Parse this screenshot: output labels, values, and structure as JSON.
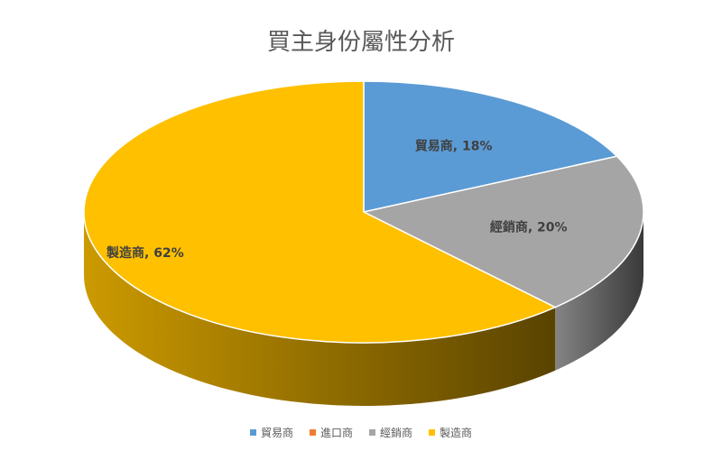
{
  "chart_data": {
    "type": "pie",
    "title": "買主身份屬性分析",
    "categories": [
      "貿易商",
      "進口商",
      "經銷商",
      "製造商"
    ],
    "values": [
      18,
      0,
      20,
      62
    ],
    "unit": "%",
    "data_labels": [
      "貿易商, 18%",
      "",
      "經銷商, 20%",
      "製造商, 62%"
    ],
    "colors": [
      "#5B9BD5",
      "#ED7D31",
      "#A5A5A5",
      "#FFC000"
    ],
    "legend_position": "bottom",
    "style": "3d"
  }
}
